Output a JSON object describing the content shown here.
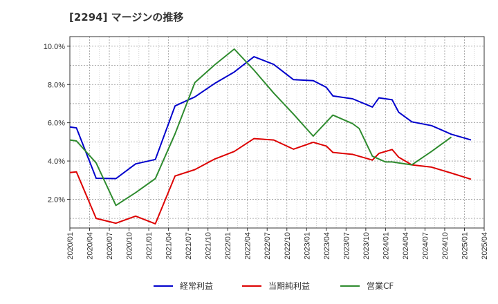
{
  "chart_data": {
    "type": "line",
    "title": "[2294]  マージンの推移",
    "xlabel": "",
    "ylabel": "",
    "y_ticks": [
      "2.0%",
      "4.0%",
      "6.0%",
      "8.0%",
      "10.0%"
    ],
    "x_ticks": [
      "2020/01",
      "2020/04",
      "2020/07",
      "2020/10",
      "2021/01",
      "2021/04",
      "2021/07",
      "2021/10",
      "2022/01",
      "2022/04",
      "2022/07",
      "2022/10",
      "2023/01",
      "2023/04",
      "2023/07",
      "2023/10",
      "2024/01",
      "2024/04",
      "2024/07",
      "2024/10",
      "2025/01",
      "2025/04"
    ],
    "ylim": [
      0.5,
      10.5
    ],
    "grid": true,
    "legend_position": "bottom",
    "series": [
      {
        "name": "経常利益",
        "color": "#0000cc",
        "points": [
          [
            "2020/01",
            5.78
          ],
          [
            "2020/02",
            5.73
          ],
          [
            "2020/05",
            3.1
          ],
          [
            "2020/08",
            3.08
          ],
          [
            "2020/11",
            3.85
          ],
          [
            "2021/02",
            4.08
          ],
          [
            "2021/05",
            6.88
          ],
          [
            "2021/08",
            7.35
          ],
          [
            "2021/11",
            8.05
          ],
          [
            "2022/02",
            8.65
          ],
          [
            "2022/05",
            9.45
          ],
          [
            "2022/08",
            9.05
          ],
          [
            "2022/11",
            8.25
          ],
          [
            "2023/02",
            8.2
          ],
          [
            "2023/04",
            7.85
          ],
          [
            "2023/05",
            7.4
          ],
          [
            "2023/08",
            7.25
          ],
          [
            "2023/11",
            6.82
          ],
          [
            "2023/12",
            7.3
          ],
          [
            "2024/02",
            7.2
          ],
          [
            "2024/03",
            6.55
          ],
          [
            "2024/05",
            6.05
          ],
          [
            "2024/08",
            5.85
          ],
          [
            "2024/11",
            5.4
          ],
          [
            "2025/02",
            5.1
          ]
        ]
      },
      {
        "name": "当期純利益",
        "color": "#dd0000",
        "points": [
          [
            "2020/01",
            3.4
          ],
          [
            "2020/02",
            3.43
          ],
          [
            "2020/05",
            1.0
          ],
          [
            "2020/08",
            0.75
          ],
          [
            "2020/11",
            1.12
          ],
          [
            "2021/02",
            0.72
          ],
          [
            "2021/05",
            3.22
          ],
          [
            "2021/08",
            3.55
          ],
          [
            "2021/11",
            4.1
          ],
          [
            "2022/02",
            4.5
          ],
          [
            "2022/05",
            5.17
          ],
          [
            "2022/08",
            5.1
          ],
          [
            "2022/11",
            4.62
          ],
          [
            "2023/02",
            4.98
          ],
          [
            "2023/04",
            4.78
          ],
          [
            "2023/05",
            4.45
          ],
          [
            "2023/08",
            4.35
          ],
          [
            "2023/11",
            4.05
          ],
          [
            "2023/12",
            4.4
          ],
          [
            "2024/02",
            4.6
          ],
          [
            "2024/03",
            4.2
          ],
          [
            "2024/05",
            3.8
          ],
          [
            "2024/08",
            3.68
          ],
          [
            "2024/11",
            3.37
          ],
          [
            "2025/02",
            3.05
          ]
        ]
      },
      {
        "name": "営業CF",
        "color": "#2e8b2e",
        "points": [
          [
            "2020/01",
            5.1
          ],
          [
            "2020/02",
            5.05
          ],
          [
            "2020/05",
            3.9
          ],
          [
            "2020/08",
            1.68
          ],
          [
            "2020/11",
            2.35
          ],
          [
            "2021/02",
            3.08
          ],
          [
            "2021/05",
            5.42
          ],
          [
            "2021/08",
            8.1
          ],
          [
            "2021/11",
            9.02
          ],
          [
            "2022/02",
            9.85
          ],
          [
            "2022/05",
            8.75
          ],
          [
            "2022/08",
            7.55
          ],
          [
            "2022/11",
            6.45
          ],
          [
            "2023/02",
            5.3
          ],
          [
            "2023/05",
            6.4
          ],
          [
            "2023/08",
            5.95
          ],
          [
            "2023/09",
            5.7
          ],
          [
            "2023/11",
            4.25
          ],
          [
            "2024/01",
            3.95
          ],
          [
            "2024/02",
            3.95
          ],
          [
            "2024/05",
            3.8
          ],
          [
            "2024/08",
            4.5
          ],
          [
            "2024/11",
            5.25
          ]
        ]
      }
    ]
  }
}
